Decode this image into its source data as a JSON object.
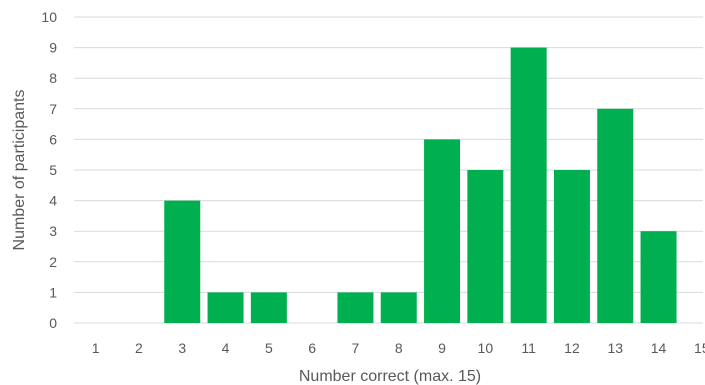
{
  "chart_data": {
    "type": "bar",
    "title": "",
    "xlabel": "Number correct (max. 15)",
    "ylabel": "Number of participants",
    "categories": [
      "1",
      "2",
      "3",
      "4",
      "5",
      "6",
      "7",
      "8",
      "9",
      "10",
      "11",
      "12",
      "13",
      "14",
      "15"
    ],
    "series": [
      {
        "values": [
          0,
          0,
          4,
          1,
          1,
          0,
          1,
          1,
          6,
          5,
          9,
          5,
          7,
          3,
          0
        ]
      }
    ],
    "ylim": [
      0,
      10
    ],
    "yticks": [
      "0",
      "1",
      "2",
      "3",
      "4",
      "5",
      "6",
      "7",
      "8",
      "9",
      "10"
    ],
    "grid": true,
    "bar_color": "#00b050",
    "grid_color": "#d9d9d9",
    "text_color": "#595959"
  }
}
